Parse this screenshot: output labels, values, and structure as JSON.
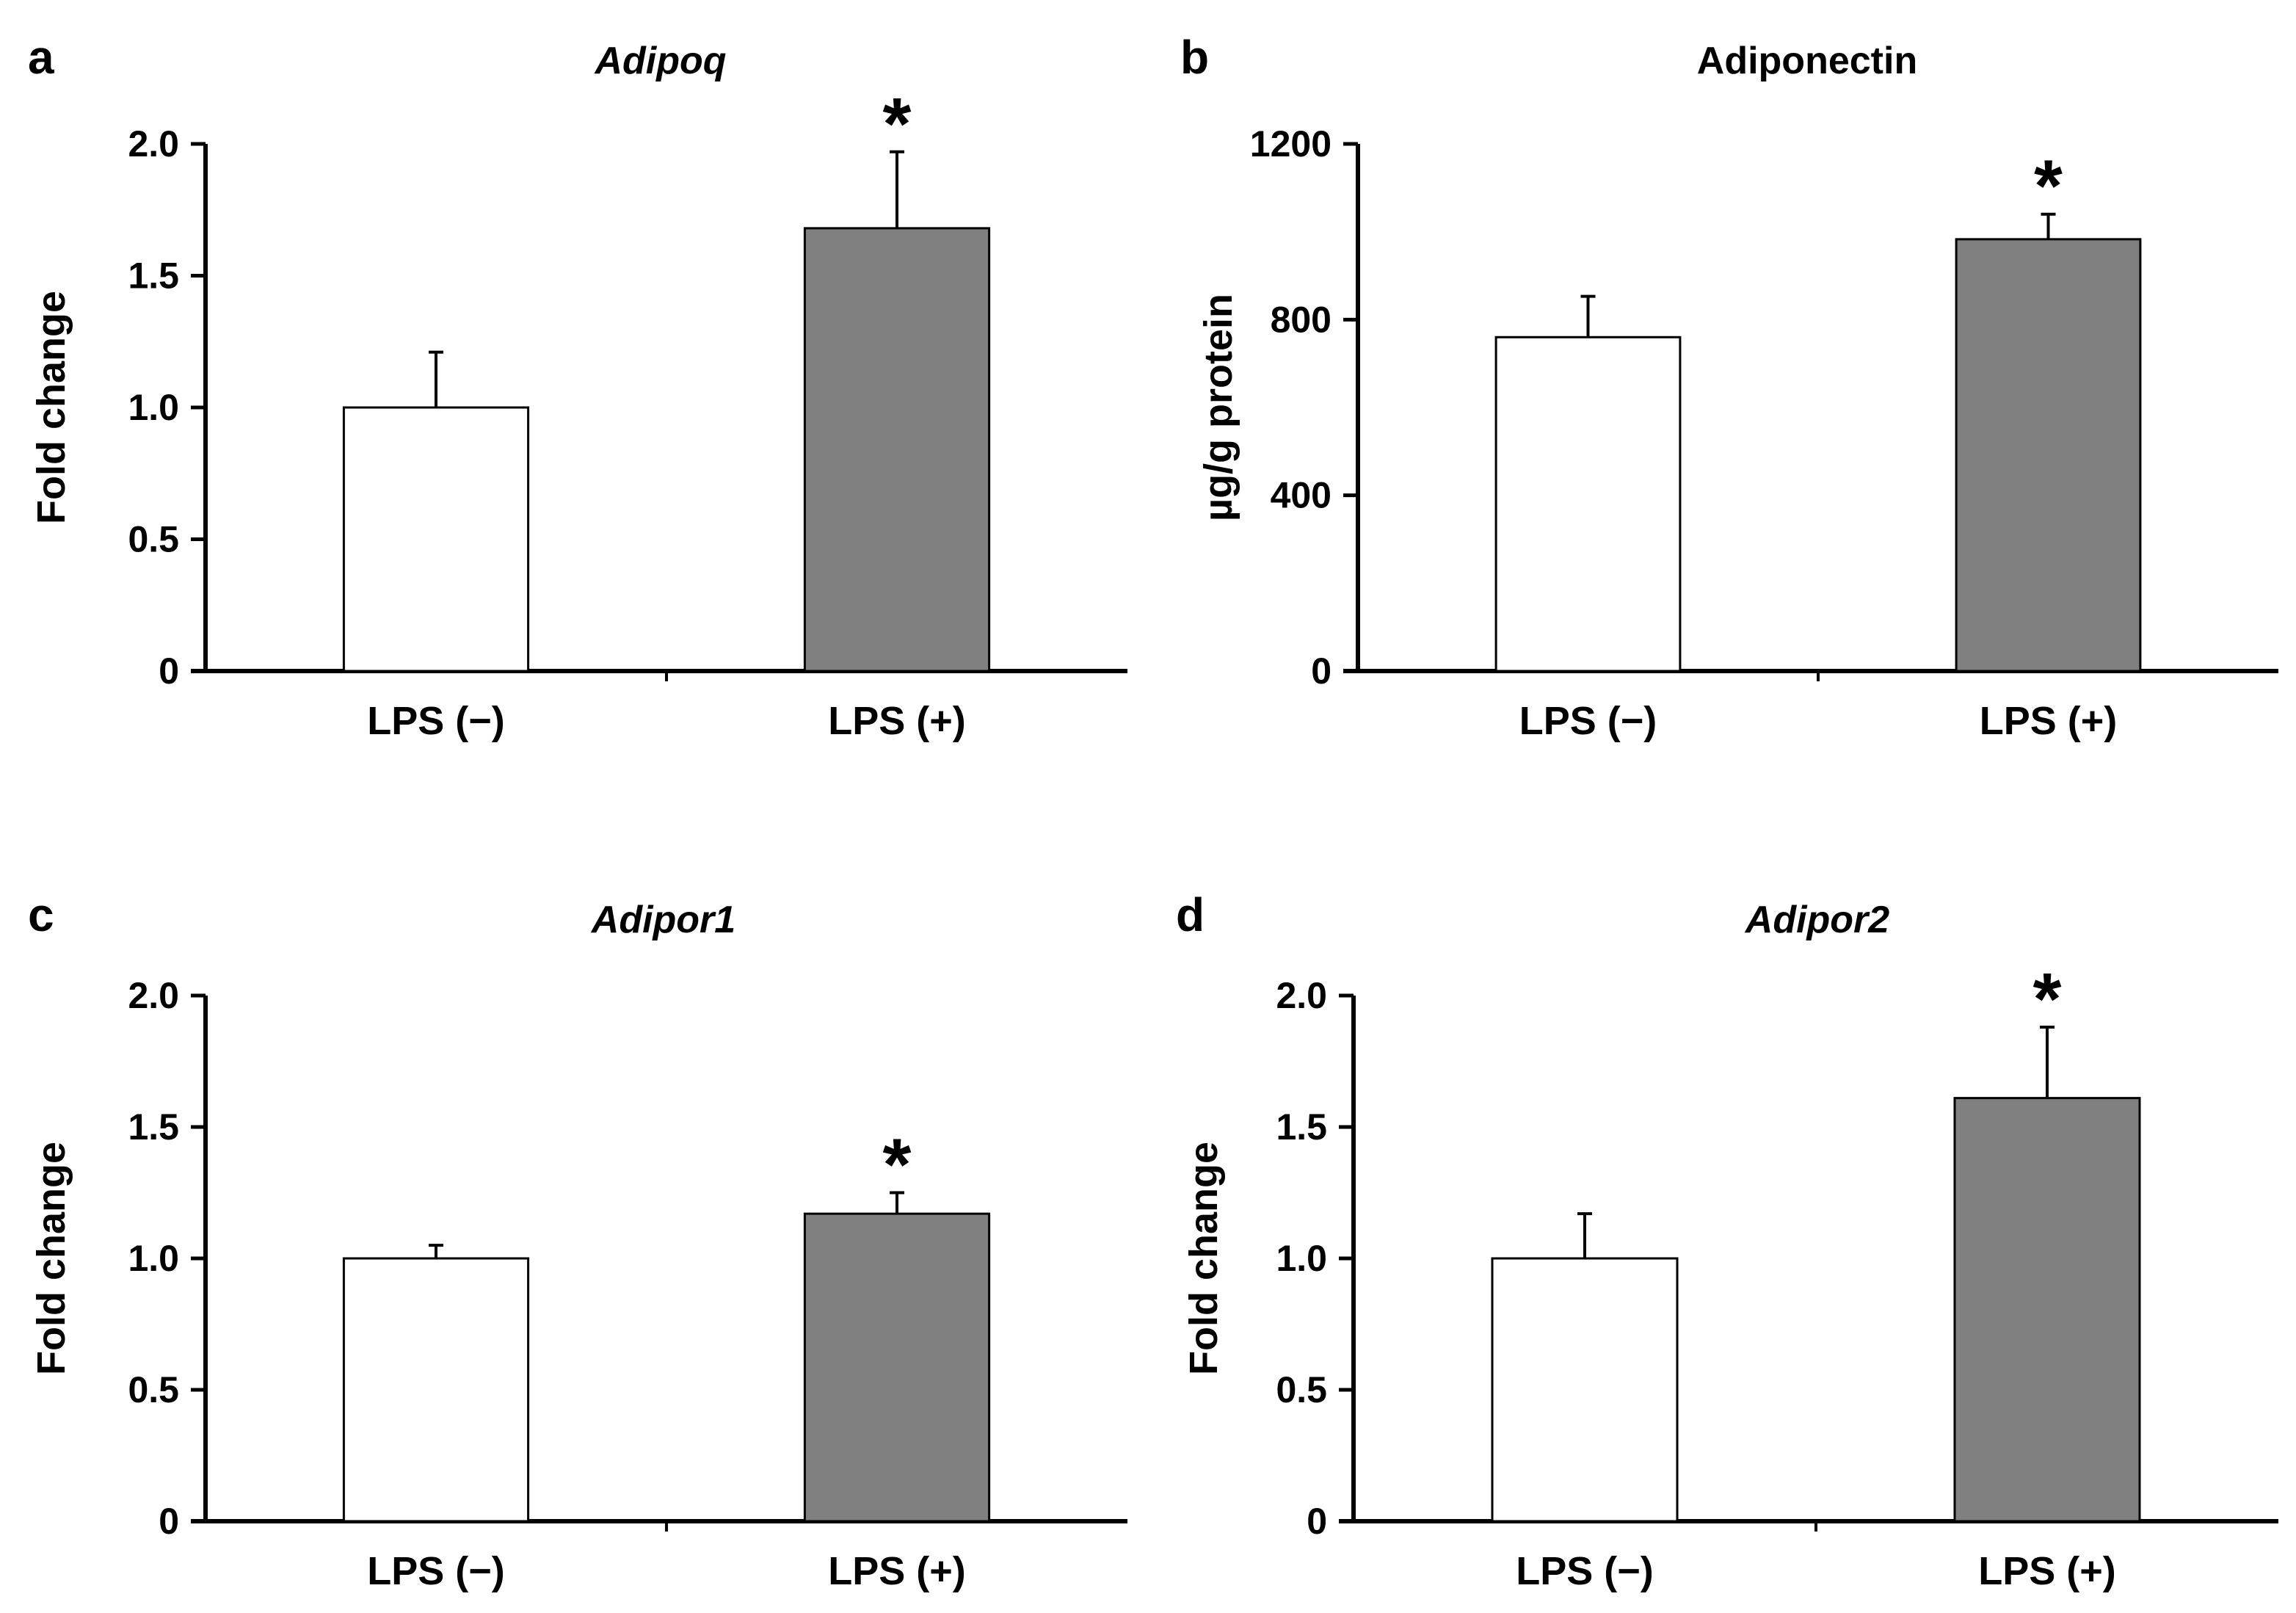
{
  "figure": {
    "colors": {
      "control_fill": "#ffffff",
      "treated_fill": "#808080",
      "outline": "#000000"
    }
  },
  "chart_data": [
    {
      "panel_label": "a",
      "type": "bar",
      "title": "Adipoq",
      "title_italic": true,
      "xlabel": "",
      "ylabel": "Fold change",
      "ylim": [
        0,
        2.0
      ],
      "yticks": [
        0,
        0.5,
        1.0,
        1.5,
        2.0
      ],
      "ytick_labels": [
        "0",
        "0.5",
        "1.0",
        "1.5",
        "2.0"
      ],
      "categories": [
        "LPS (−)",
        "LPS (+)"
      ],
      "values": [
        1.0,
        1.68
      ],
      "errors": [
        0.21,
        0.29
      ],
      "significance": [
        "",
        "*"
      ]
    },
    {
      "panel_label": "b",
      "type": "bar",
      "title": "Adiponectin",
      "title_italic": false,
      "xlabel": "",
      "ylabel": "µg/g protein",
      "ylim": [
        0,
        1200
      ],
      "yticks": [
        0,
        400,
        800,
        1200
      ],
      "ytick_labels": [
        "0",
        "400",
        "800",
        "1200"
      ],
      "categories": [
        "LPS (−)",
        "LPS (+)"
      ],
      "values": [
        760,
        983
      ],
      "errors": [
        93,
        57
      ],
      "significance": [
        "",
        "*"
      ]
    },
    {
      "panel_label": "c",
      "type": "bar",
      "title": "Adipor1",
      "title_italic": true,
      "xlabel": "",
      "ylabel": "Fold change",
      "ylim": [
        0,
        2.0
      ],
      "yticks": [
        0,
        0.5,
        1.0,
        1.5,
        2.0
      ],
      "ytick_labels": [
        "0",
        "0.5",
        "1.0",
        "1.5",
        "2.0"
      ],
      "categories": [
        "LPS (−)",
        "LPS (+)"
      ],
      "values": [
        1.0,
        1.17
      ],
      "errors": [
        0.05,
        0.08
      ],
      "significance": [
        "",
        "*"
      ]
    },
    {
      "panel_label": "d",
      "type": "bar",
      "title": "Adipor2",
      "title_italic": true,
      "xlabel": "",
      "ylabel": "Fold change",
      "ylim": [
        0,
        2.0
      ],
      "yticks": [
        0,
        0.5,
        1.0,
        1.5,
        2.0
      ],
      "ytick_labels": [
        "0",
        "0.5",
        "1.0",
        "1.5",
        "2.0"
      ],
      "categories": [
        "LPS (−)",
        "LPS (+)"
      ],
      "values": [
        1.0,
        1.61
      ],
      "errors": [
        0.17,
        0.27
      ],
      "significance": [
        "",
        "*"
      ]
    }
  ]
}
